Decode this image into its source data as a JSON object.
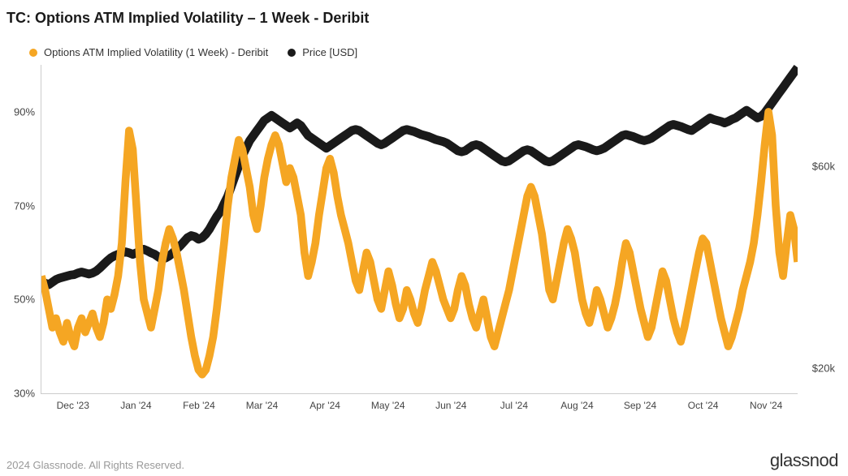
{
  "title": "TC: Options ATM Implied Volatility – 1 Week - Deribit",
  "legend": {
    "series1": {
      "label": "Options ATM Implied Volatility (1 Week) - Deribit",
      "color": "#f5a623"
    },
    "series2": {
      "label": "Price [USD]",
      "color": "#1a1a1a"
    }
  },
  "chart": {
    "type": "line",
    "background_color": "#ffffff",
    "border_color": "#cccccc",
    "y_left": {
      "min": 30,
      "max": 100,
      "ticks": [
        {
          "v": 30,
          "l": "30%"
        },
        {
          "v": 50,
          "l": "50%"
        },
        {
          "v": 70,
          "l": "70%"
        },
        {
          "v": 90,
          "l": "90%"
        }
      ]
    },
    "y_right": {
      "min": 15000,
      "max": 80000,
      "ticks": [
        {
          "v": 20000,
          "l": "$20k"
        },
        {
          "v": 60000,
          "l": "$60k"
        }
      ]
    },
    "x": {
      "labels": [
        "Dec '23",
        "Jan '24",
        "Feb '24",
        "Mar '24",
        "Apr '24",
        "May '24",
        "Jun '24",
        "Jul '24",
        "Aug '24",
        "Sep '24",
        "Oct '24",
        "Nov '24"
      ]
    },
    "iv_color": "#f5a623",
    "iv_width": 1.6,
    "price_color": "#1a1a1a",
    "price_width": 1.8,
    "iv": [
      55,
      52,
      48,
      44,
      46,
      43,
      41,
      45,
      42,
      40,
      44,
      46,
      43,
      45,
      47,
      44,
      42,
      45,
      50,
      48,
      51,
      55,
      62,
      75,
      86,
      82,
      70,
      58,
      50,
      47,
      44,
      48,
      52,
      58,
      62,
      65,
      63,
      60,
      56,
      52,
      47,
      42,
      38,
      35,
      34,
      35,
      38,
      42,
      48,
      55,
      62,
      70,
      76,
      80,
      84,
      82,
      78,
      74,
      68,
      65,
      70,
      76,
      80,
      83,
      85,
      83,
      79,
      75,
      78,
      76,
      72,
      68,
      60,
      55,
      58,
      62,
      68,
      73,
      78,
      80,
      77,
      72,
      68,
      65,
      62,
      58,
      54,
      52,
      56,
      60,
      58,
      54,
      50,
      48,
      52,
      56,
      53,
      49,
      46,
      48,
      52,
      50,
      47,
      45,
      48,
      52,
      55,
      58,
      56,
      53,
      50,
      48,
      46,
      48,
      52,
      55,
      53,
      49,
      46,
      44,
      47,
      50,
      46,
      42,
      40,
      43,
      46,
      49,
      52,
      56,
      60,
      64,
      68,
      72,
      74,
      72,
      68,
      64,
      58,
      52,
      50,
      54,
      58,
      62,
      65,
      63,
      60,
      55,
      50,
      47,
      45,
      48,
      52,
      50,
      47,
      44,
      46,
      49,
      53,
      58,
      62,
      60,
      56,
      52,
      48,
      45,
      42,
      44,
      48,
      52,
      56,
      54,
      50,
      46,
      43,
      41,
      44,
      48,
      52,
      56,
      60,
      63,
      62,
      58,
      54,
      50,
      46,
      43,
      40,
      42,
      45,
      48,
      52,
      55,
      58,
      62,
      68,
      75,
      83,
      90,
      85,
      70,
      60,
      55,
      62,
      68,
      65,
      58
    ],
    "price": [
      37000,
      36800,
      36500,
      37000,
      37500,
      37800,
      38000,
      38200,
      38400,
      38500,
      38800,
      39000,
      38800,
      38600,
      38800,
      39200,
      39800,
      40500,
      41200,
      41800,
      42200,
      42500,
      42800,
      43000,
      42800,
      42500,
      42800,
      43200,
      43500,
      43200,
      42800,
      42500,
      42000,
      41500,
      41800,
      42200,
      42800,
      43500,
      44200,
      45000,
      45800,
      46200,
      46000,
      45500,
      45800,
      46500,
      47500,
      48800,
      50000,
      51000,
      52500,
      54000,
      56000,
      58000,
      60000,
      62000,
      63500,
      65000,
      66000,
      67000,
      68000,
      69000,
      69500,
      70000,
      69500,
      69000,
      68500,
      68000,
      67500,
      68000,
      68500,
      68000,
      67000,
      66000,
      65500,
      65000,
      64500,
      64000,
      63500,
      64000,
      64500,
      65000,
      65500,
      66000,
      66500,
      67000,
      67200,
      67000,
      66500,
      66000,
      65500,
      65000,
      64500,
      64200,
      64500,
      65000,
      65500,
      66000,
      66500,
      67000,
      67200,
      67000,
      66800,
      66500,
      66200,
      66000,
      65800,
      65500,
      65200,
      65000,
      64800,
      64500,
      64000,
      63500,
      63000,
      62800,
      63000,
      63500,
      64000,
      64200,
      64000,
      63500,
      63000,
      62500,
      62000,
      61500,
      61000,
      60800,
      61000,
      61500,
      62000,
      62500,
      63000,
      63200,
      63000,
      62500,
      62000,
      61500,
      61000,
      60800,
      61000,
      61500,
      62000,
      62500,
      63000,
      63500,
      64000,
      64200,
      64000,
      63800,
      63500,
      63200,
      63000,
      63200,
      63500,
      64000,
      64500,
      65000,
      65500,
      66000,
      66200,
      66000,
      65800,
      65500,
      65200,
      65000,
      65200,
      65500,
      66000,
      66500,
      67000,
      67500,
      68000,
      68200,
      68000,
      67800,
      67500,
      67200,
      67000,
      67500,
      68000,
      68500,
      69000,
      69500,
      69200,
      69000,
      68800,
      68500,
      68800,
      69200,
      69500,
      70000,
      70500,
      71000,
      70500,
      70000,
      69500,
      69800,
      70500,
      71500,
      72500,
      73500,
      74500,
      75500,
      76500,
      77500,
      78500,
      79500
    ]
  },
  "footer": {
    "copyright": "2024 Glassnode. All Rights Reserved.",
    "brand": "glassnod"
  }
}
